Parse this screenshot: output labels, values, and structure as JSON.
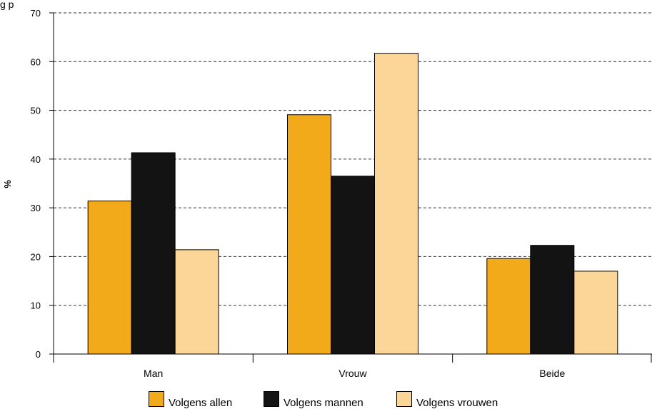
{
  "title": "g                              p",
  "chart_data": {
    "type": "bar",
    "title": "",
    "xlabel": "",
    "ylabel": "%",
    "ylim": [
      0,
      70
    ],
    "yticks": [
      0,
      10,
      20,
      30,
      40,
      50,
      60,
      70
    ],
    "grid": true,
    "legend_position": "bottom",
    "categories": [
      "Man",
      "Vrouw",
      "Beide"
    ],
    "series": [
      {
        "name": "Volgens allen",
        "values": [
          31.4,
          49.1,
          19.6
        ],
        "color": "#F2AA1B"
      },
      {
        "name": "Volgens mannen",
        "values": [
          41.3,
          36.5,
          22.3
        ],
        "color": "#131313"
      },
      {
        "name": "Volgens vrouwen",
        "values": [
          21.4,
          61.7,
          17.0
        ],
        "color": "#FCD698"
      }
    ]
  }
}
